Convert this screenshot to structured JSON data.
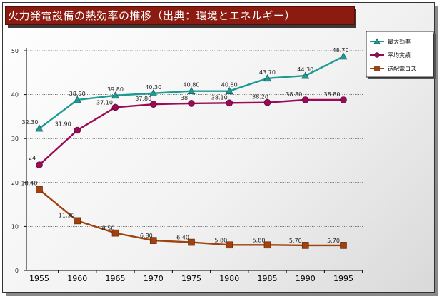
{
  "title": "火力発電設備の熱効率の推移（出典：環境とエネルギー）",
  "chart_data": {
    "type": "line",
    "title": "火力発電設備の熱効率の推移（出典：環境とエネルギー）",
    "x": [
      "1955",
      "1960",
      "1965",
      "1970",
      "1975",
      "1980",
      "1985",
      "1990",
      "1995"
    ],
    "ylim": [
      0,
      50
    ],
    "yticks": [
      "0",
      "10",
      "20",
      "30",
      "40",
      "50"
    ],
    "grid": true,
    "legend_position": "top-right",
    "series": [
      {
        "name": "最大効率",
        "color": "#1e9a94",
        "marker": "triangle",
        "values": [
          32.3,
          38.8,
          39.8,
          40.3,
          40.8,
          40.8,
          43.7,
          44.3,
          48.7
        ],
        "labels": [
          "32.30",
          "38.80",
          "39.80",
          "40.30",
          "40.80",
          "40.80",
          "43.70",
          "44.30",
          "48.70"
        ]
      },
      {
        "name": "平均実績",
        "color": "#9b0a56",
        "marker": "circle",
        "values": [
          24,
          31.9,
          37.1,
          37.8,
          38,
          38.1,
          38.2,
          38.8,
          38.8
        ],
        "labels": [
          "24",
          "31.90",
          "37.10",
          "37.80",
          "38",
          "38.10",
          "38.20",
          "38.80",
          "38.80"
        ]
      },
      {
        "name": "送配電ロス",
        "color": "#a0420e",
        "marker": "square",
        "values": [
          18.4,
          11.3,
          8.5,
          6.8,
          6.4,
          5.8,
          5.8,
          5.7,
          5.7
        ],
        "labels": [
          "18.40",
          "11.30",
          "8.50",
          "6.80",
          "6.40",
          "5.80",
          "5.80",
          "5.70",
          "5.70"
        ]
      }
    ]
  }
}
